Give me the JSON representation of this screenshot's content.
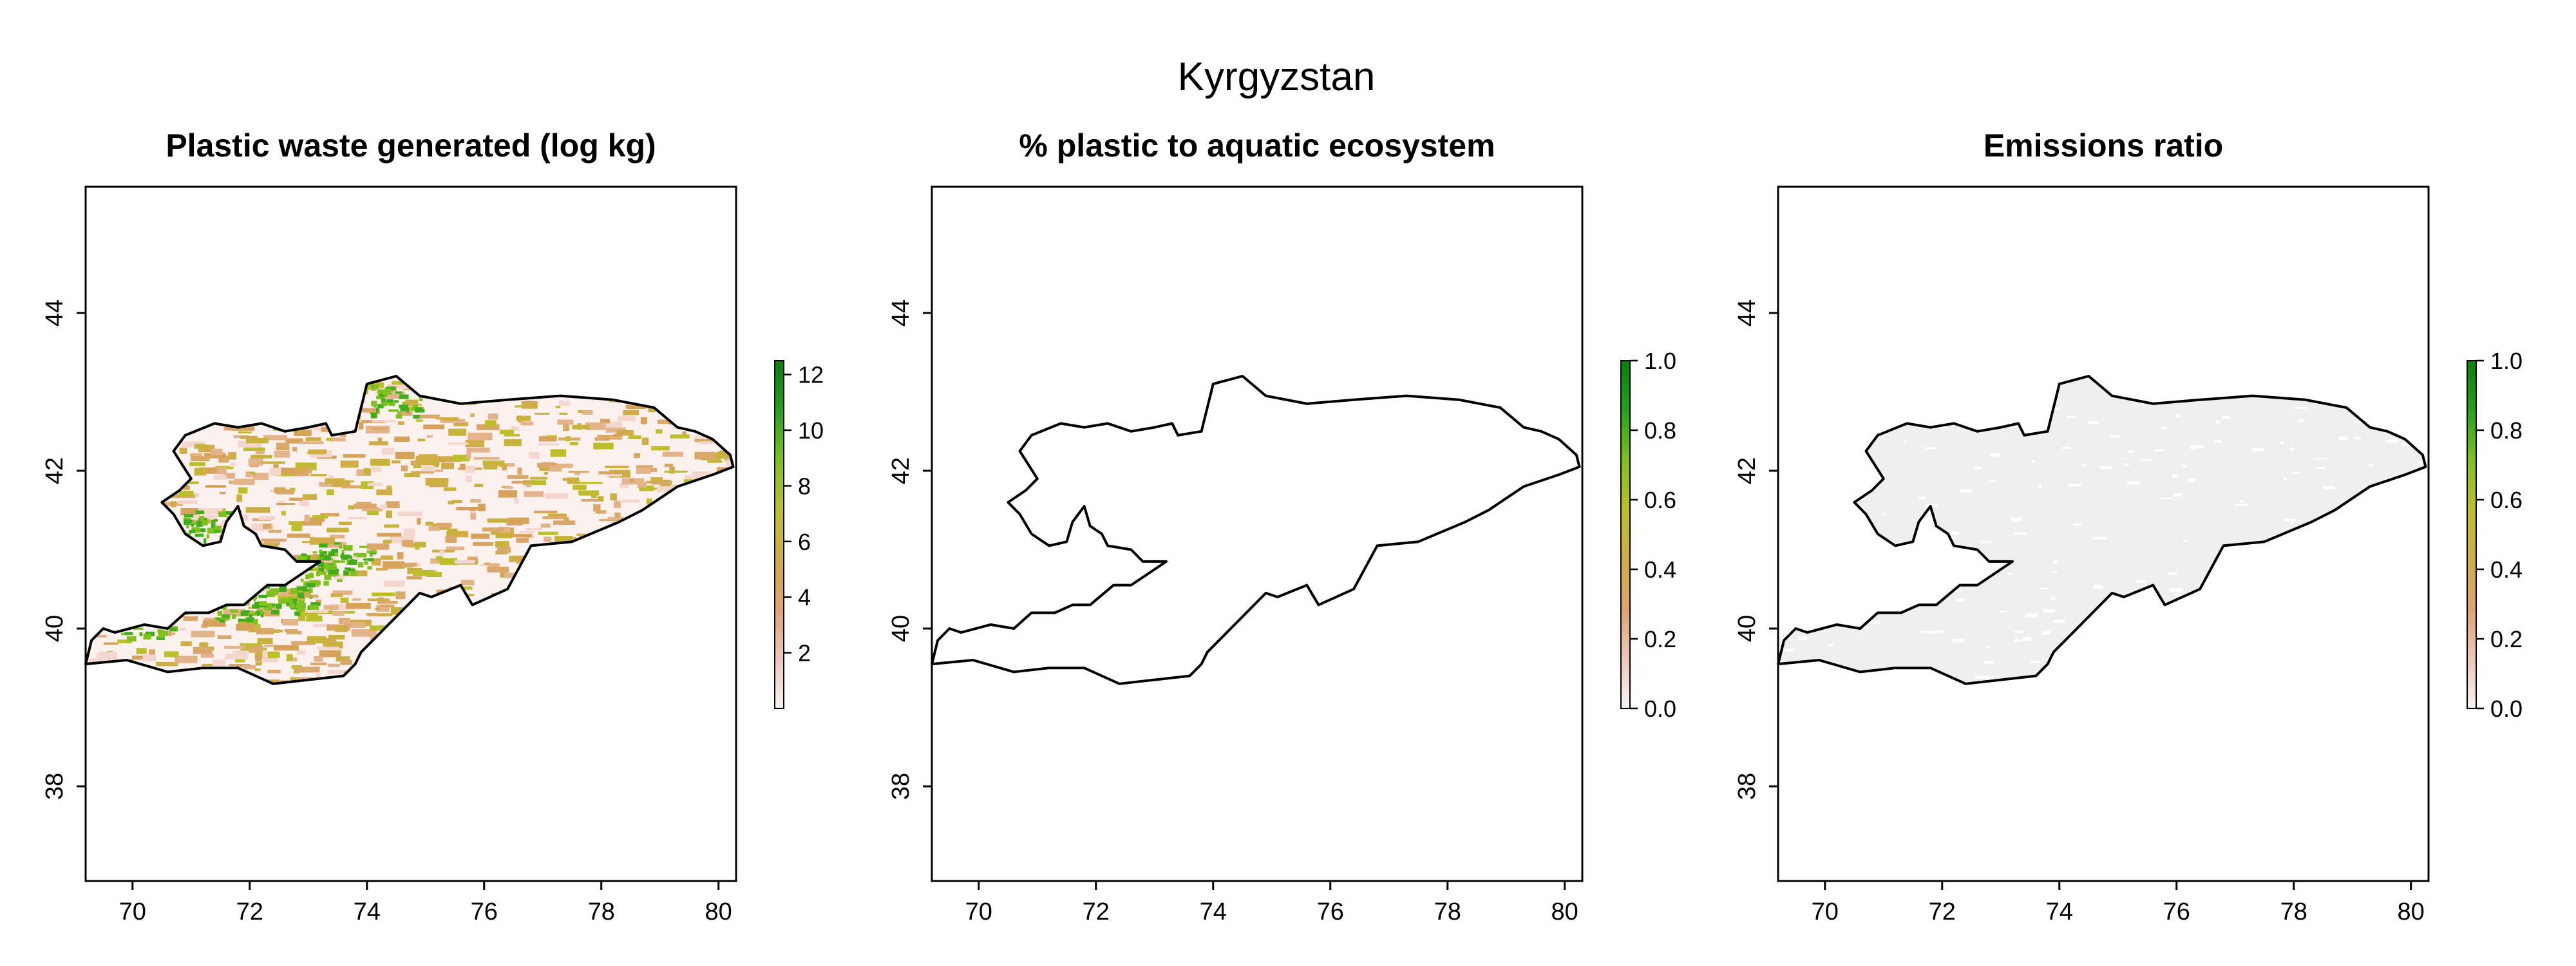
{
  "figure": {
    "title": "Kyrgyzstan"
  },
  "panels": [
    {
      "id": "waste",
      "title": "Plastic waste generated (log kg)",
      "fill": "waste",
      "legend_ticks": [
        "2",
        "4",
        "6",
        "8",
        "10",
        "12"
      ],
      "legend_values": [
        2,
        4,
        6,
        8,
        10,
        12
      ],
      "legend_range": [
        0,
        12.5
      ]
    },
    {
      "id": "aquatic",
      "title": "% plastic to aquatic ecosystem",
      "fill": "none",
      "legend_ticks": [
        "0.0",
        "0.2",
        "0.4",
        "0.6",
        "0.8",
        "1.0"
      ],
      "legend_values": [
        0,
        0.2,
        0.4,
        0.6,
        0.8,
        1.0
      ],
      "legend_range": [
        0,
        1
      ]
    },
    {
      "id": "emissions",
      "title": "Emissions ratio",
      "fill": "gray",
      "legend_ticks": [
        "0.0",
        "0.2",
        "0.4",
        "0.6",
        "0.8",
        "1.0"
      ],
      "legend_values": [
        0,
        0.2,
        0.4,
        0.6,
        0.8,
        1.0
      ],
      "legend_range": [
        0,
        1
      ]
    }
  ],
  "axes": {
    "x_ticks": [
      "70",
      "72",
      "74",
      "76",
      "78",
      "80"
    ],
    "x_values": [
      70,
      72,
      74,
      76,
      78,
      80
    ],
    "y_ticks": [
      "38",
      "40",
      "42",
      "44"
    ],
    "y_values": [
      38,
      40,
      42,
      44
    ],
    "xlim": [
      69.2,
      80.3
    ],
    "ylim": [
      36.8,
      45.6
    ]
  },
  "colors": {
    "ramp": [
      "#f7f4f4",
      "#ecc7b8",
      "#e0a36f",
      "#cfae45",
      "#bdbf2a",
      "#7fc21d",
      "#21a31a",
      "#0a7f0a"
    ],
    "no_data_gray": "#efefef",
    "border": "#000000"
  }
}
